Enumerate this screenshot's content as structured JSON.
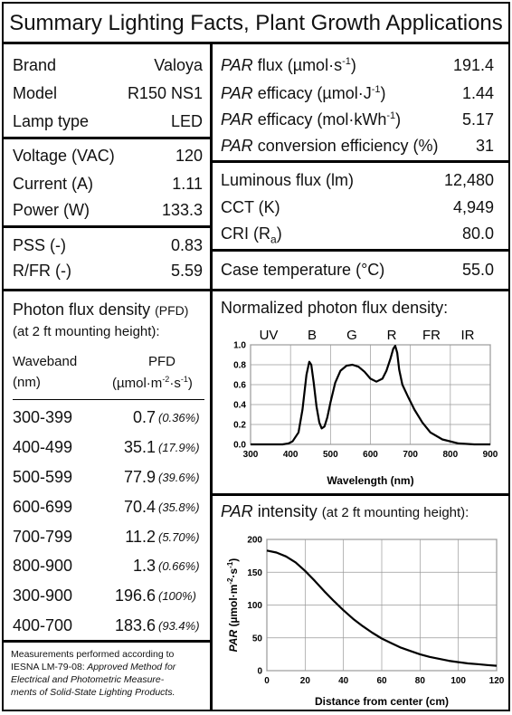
{
  "title": "Summary Lighting Facts, Plant Growth Applications",
  "lamp": [
    {
      "label": "Brand",
      "value": "Valoya"
    },
    {
      "label": "Model",
      "value": "R150 NS1"
    },
    {
      "label": "Lamp type",
      "value": "LED"
    }
  ],
  "electrical": [
    {
      "label": "Voltage (VAC)",
      "value": "120"
    },
    {
      "label": "Current (A)",
      "value": "1.11"
    },
    {
      "label": "Power (W)",
      "value": "133.3"
    }
  ],
  "spectral_ratios": [
    {
      "label": "PSS (-)",
      "value": "0.83"
    },
    {
      "label": "R/FR (-)",
      "value": "5.59"
    }
  ],
  "par": [
    {
      "label_em": "PAR",
      "label": " flux (µmol·s",
      "sup": "-1",
      "tail": ")",
      "value": "191.4"
    },
    {
      "label_em": "PAR",
      "label": " efficacy (µmol·J",
      "sup": "-1",
      "tail": ")",
      "value": "1.44"
    },
    {
      "label_em": "PAR",
      "label": " efficacy (mol·kWh",
      "sup": "-1",
      "tail": ")",
      "value": "5.17"
    },
    {
      "label_em": "PAR",
      "label": " conversion efficiency (%)",
      "sup": "",
      "tail": "",
      "value": "31"
    }
  ],
  "photometric": [
    {
      "label": "Luminous flux (lm)",
      "value": "12,480"
    },
    {
      "label": "CCT (K)",
      "value": "4,949"
    },
    {
      "label": "CRI (R",
      "sub": "a",
      "tail": ")",
      "value": "80.0"
    }
  ],
  "case_temp": {
    "label": "Case temperature (°C)",
    "value": "55.0"
  },
  "pfd": {
    "title": "Photon flux density",
    "title_small": "(PFD)",
    "subtitle": "(at 2 ft mounting height):",
    "col1": "Waveband",
    "col1_unit": "(nm)",
    "col2": "PFD",
    "col2_unit_pre": "(µmol·m",
    "col2_sup1": "-2",
    "col2_mid": "·s",
    "col2_sup2": "-1",
    "col2_tail": ")",
    "rows": [
      {
        "band": "300-399",
        "value": "0.7",
        "pct": "(0.36%)"
      },
      {
        "band": "400-499",
        "value": "35.1",
        "pct": "(17.9%)"
      },
      {
        "band": "500-599",
        "value": "77.9",
        "pct": "(39.6%)"
      },
      {
        "band": "600-699",
        "value": "70.4",
        "pct": "(35.8%)"
      },
      {
        "band": "700-799",
        "value": "11.2",
        "pct": "(5.70%)"
      },
      {
        "band": "800-900",
        "value": "1.3",
        "pct": "(0.66%)"
      },
      {
        "band": "300-900",
        "value": "196.6",
        "pct": "(100%)"
      },
      {
        "band": "400-700",
        "value": "183.6",
        "pct": "(93.4%)"
      }
    ]
  },
  "note": {
    "line1": "Measurements performed according to",
    "line2": "IESNA LM-79-08:",
    "line2_em": " Approved Method for",
    "line3_em": "Electrical and Photometric Measure-",
    "line4_em": "ments of Solid-State Lighting Products."
  },
  "chart_data": [
    {
      "type": "line",
      "title": "Normalized photon flux density:",
      "band_labels": [
        "UV",
        "B",
        "G",
        "R",
        "FR",
        "IR"
      ],
      "xlabel": "Wavelength (nm)",
      "ylabel": "",
      "xlim": [
        300,
        900
      ],
      "ylim": [
        0,
        1.0
      ],
      "xticks": [
        300,
        400,
        500,
        600,
        700,
        800,
        900
      ],
      "yticks": [
        "0.0",
        "0.2",
        "0.4",
        "0.6",
        "0.8",
        "1.0"
      ],
      "grid": true,
      "x": [
        300,
        380,
        395,
        405,
        420,
        430,
        440,
        447,
        452,
        458,
        465,
        472,
        478,
        485,
        492,
        500,
        512,
        525,
        540,
        555,
        570,
        585,
        600,
        615,
        630,
        640,
        650,
        657,
        662,
        667,
        672,
        680,
        695,
        710,
        730,
        750,
        780,
        820,
        860,
        900
      ],
      "y": [
        0.0,
        0.0,
        0.01,
        0.03,
        0.12,
        0.35,
        0.7,
        0.83,
        0.8,
        0.62,
        0.38,
        0.22,
        0.16,
        0.18,
        0.27,
        0.42,
        0.62,
        0.74,
        0.79,
        0.8,
        0.78,
        0.73,
        0.66,
        0.63,
        0.66,
        0.74,
        0.86,
        0.96,
        0.99,
        0.92,
        0.75,
        0.6,
        0.47,
        0.35,
        0.22,
        0.12,
        0.05,
        0.01,
        0.0,
        0.0
      ]
    },
    {
      "type": "line",
      "title_em": "PAR",
      "title": " intensity",
      "title_small": "(at 2 ft mounting height):",
      "xlabel": "Distance from center (cm)",
      "ylabel_em": "PAR",
      "ylabel": " (µmol·m",
      "ylabel_sup1": "-2",
      "ylabel_mid": "·s",
      "ylabel_sup2": "-1",
      "ylabel_tail": ")",
      "xlim": [
        0,
        120
      ],
      "ylim": [
        0,
        200
      ],
      "xticks": [
        0,
        20,
        40,
        60,
        80,
        100,
        120
      ],
      "yticks": [
        0,
        50,
        100,
        150,
        200
      ],
      "grid": true,
      "x": [
        0,
        5,
        10,
        15,
        20,
        25,
        30,
        35,
        40,
        45,
        50,
        55,
        60,
        65,
        70,
        75,
        80,
        85,
        90,
        95,
        100,
        105,
        110,
        115,
        120
      ],
      "y": [
        183,
        180,
        174,
        165,
        152,
        137,
        121,
        106,
        92,
        79,
        68,
        58,
        49,
        42,
        35,
        30,
        25,
        21,
        18,
        15,
        13,
        11,
        10,
        8.5,
        7.5
      ]
    }
  ]
}
